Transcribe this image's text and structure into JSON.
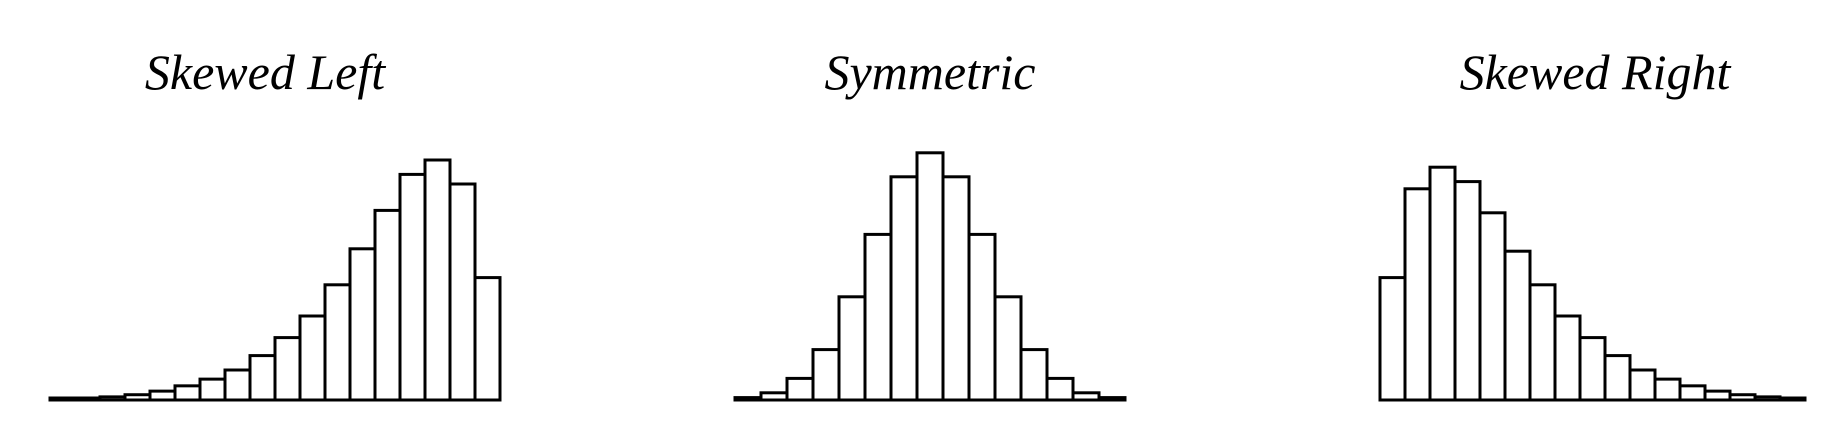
{
  "colors": {
    "background": "#ffffff",
    "bar_fill": "#ffffff",
    "bar_stroke": "#000000",
    "text": "#000000"
  },
  "chart_data": [
    {
      "type": "bar",
      "title": "Skewed Left",
      "xlabel": "",
      "ylabel": "",
      "grid": false,
      "axes_visible": false,
      "values": [
        0.4,
        0.8,
        1.3,
        2.2,
        3.7,
        5.9,
        8.7,
        12.5,
        18.5,
        26,
        35,
        48,
        63,
        79,
        94,
        100,
        90,
        51
      ]
    },
    {
      "type": "bar",
      "title": "Symmetric",
      "xlabel": "",
      "ylabel": "",
      "grid": false,
      "axes_visible": false,
      "values": [
        1,
        3,
        9,
        21,
        43,
        69,
        93,
        103,
        93,
        69,
        43,
        21,
        9,
        3,
        1
      ]
    },
    {
      "type": "bar",
      "title": "Skewed Right",
      "xlabel": "",
      "ylabel": "",
      "grid": false,
      "axes_visible": false,
      "values": [
        51,
        88,
        97,
        91,
        78,
        62,
        48,
        35,
        26,
        18.5,
        12.5,
        8.7,
        5.9,
        3.7,
        2.2,
        1.3,
        0.8
      ]
    }
  ]
}
